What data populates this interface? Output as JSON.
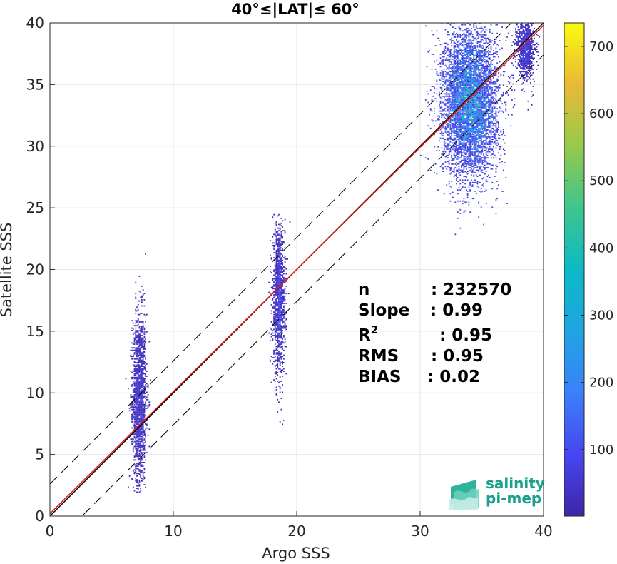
{
  "chart_data": {
    "type": "scatter",
    "title": "40°≤|LAT|≤ 60°",
    "xlabel": "Argo SSS",
    "ylabel": "Satellite SSS",
    "xlim": [
      0,
      40
    ],
    "ylim": [
      0,
      40
    ],
    "xticks": [
      "0",
      "10",
      "20",
      "30",
      "40"
    ],
    "yticks": [
      "0",
      "5",
      "10",
      "15",
      "20",
      "25",
      "30",
      "35",
      "40"
    ],
    "grid": true,
    "plot_style": "2D density histogram",
    "clusters": [
      {
        "x_center": 7.2,
        "y_center": 9.5,
        "x_spread": 0.5,
        "y_range": [
          1.8,
          23.2
        ],
        "peak_count": 120
      },
      {
        "x_center": 18.5,
        "y_center": 17.5,
        "x_spread": 0.45,
        "y_range": [
          6.5,
          24.5
        ],
        "peak_count": 150
      },
      {
        "x_center": 34.0,
        "y_center": 33.5,
        "x_spread": 2.0,
        "y_range": [
          22.0,
          40.0
        ],
        "peak_count": 730
      },
      {
        "x_center": 38.5,
        "y_center": 38.0,
        "x_spread": 0.7,
        "y_range": [
          32.0,
          40.0
        ],
        "peak_count": 220
      }
    ],
    "lines": [
      {
        "name": "1:1 line",
        "slope": 1.0,
        "intercept": 0.0,
        "color": "#000000",
        "style": "solid"
      },
      {
        "name": "regression",
        "slope": 0.99,
        "intercept": 0.2,
        "color": "#e41a1c",
        "style": "solid"
      },
      {
        "name": "upper bound",
        "slope": 1.0,
        "intercept": 2.6,
        "color": "#000000",
        "style": "dashed"
      },
      {
        "name": "lower bound",
        "slope": 1.0,
        "intercept": -2.6,
        "color": "#000000",
        "style": "dashed"
      }
    ],
    "stats": [
      {
        "label": "n",
        "sup": "",
        "value": ": 232570"
      },
      {
        "label": "Slope",
        "sup": "",
        "value": ": 0.99"
      },
      {
        "label": "R",
        "sup": "2",
        "value": ": 0.95"
      },
      {
        "label": "RMS",
        "sup": "",
        "value": ": 0.95"
      },
      {
        "label": "BIAS",
        "sup": "",
        "value": ": 0.02"
      }
    ],
    "colorbar": {
      "colormap": "parula",
      "range": [
        1,
        735
      ],
      "ticks": [
        "100",
        "200",
        "300",
        "400",
        "500",
        "600",
        "700"
      ]
    }
  },
  "logo": {
    "line1": "salinity",
    "line2": "pi-mep"
  },
  "colors": {
    "dashed": "#000000",
    "identity": "#000000",
    "regression": "#e41a1c",
    "grid": "#e6e6e6",
    "logo": "#1a9f8c"
  }
}
